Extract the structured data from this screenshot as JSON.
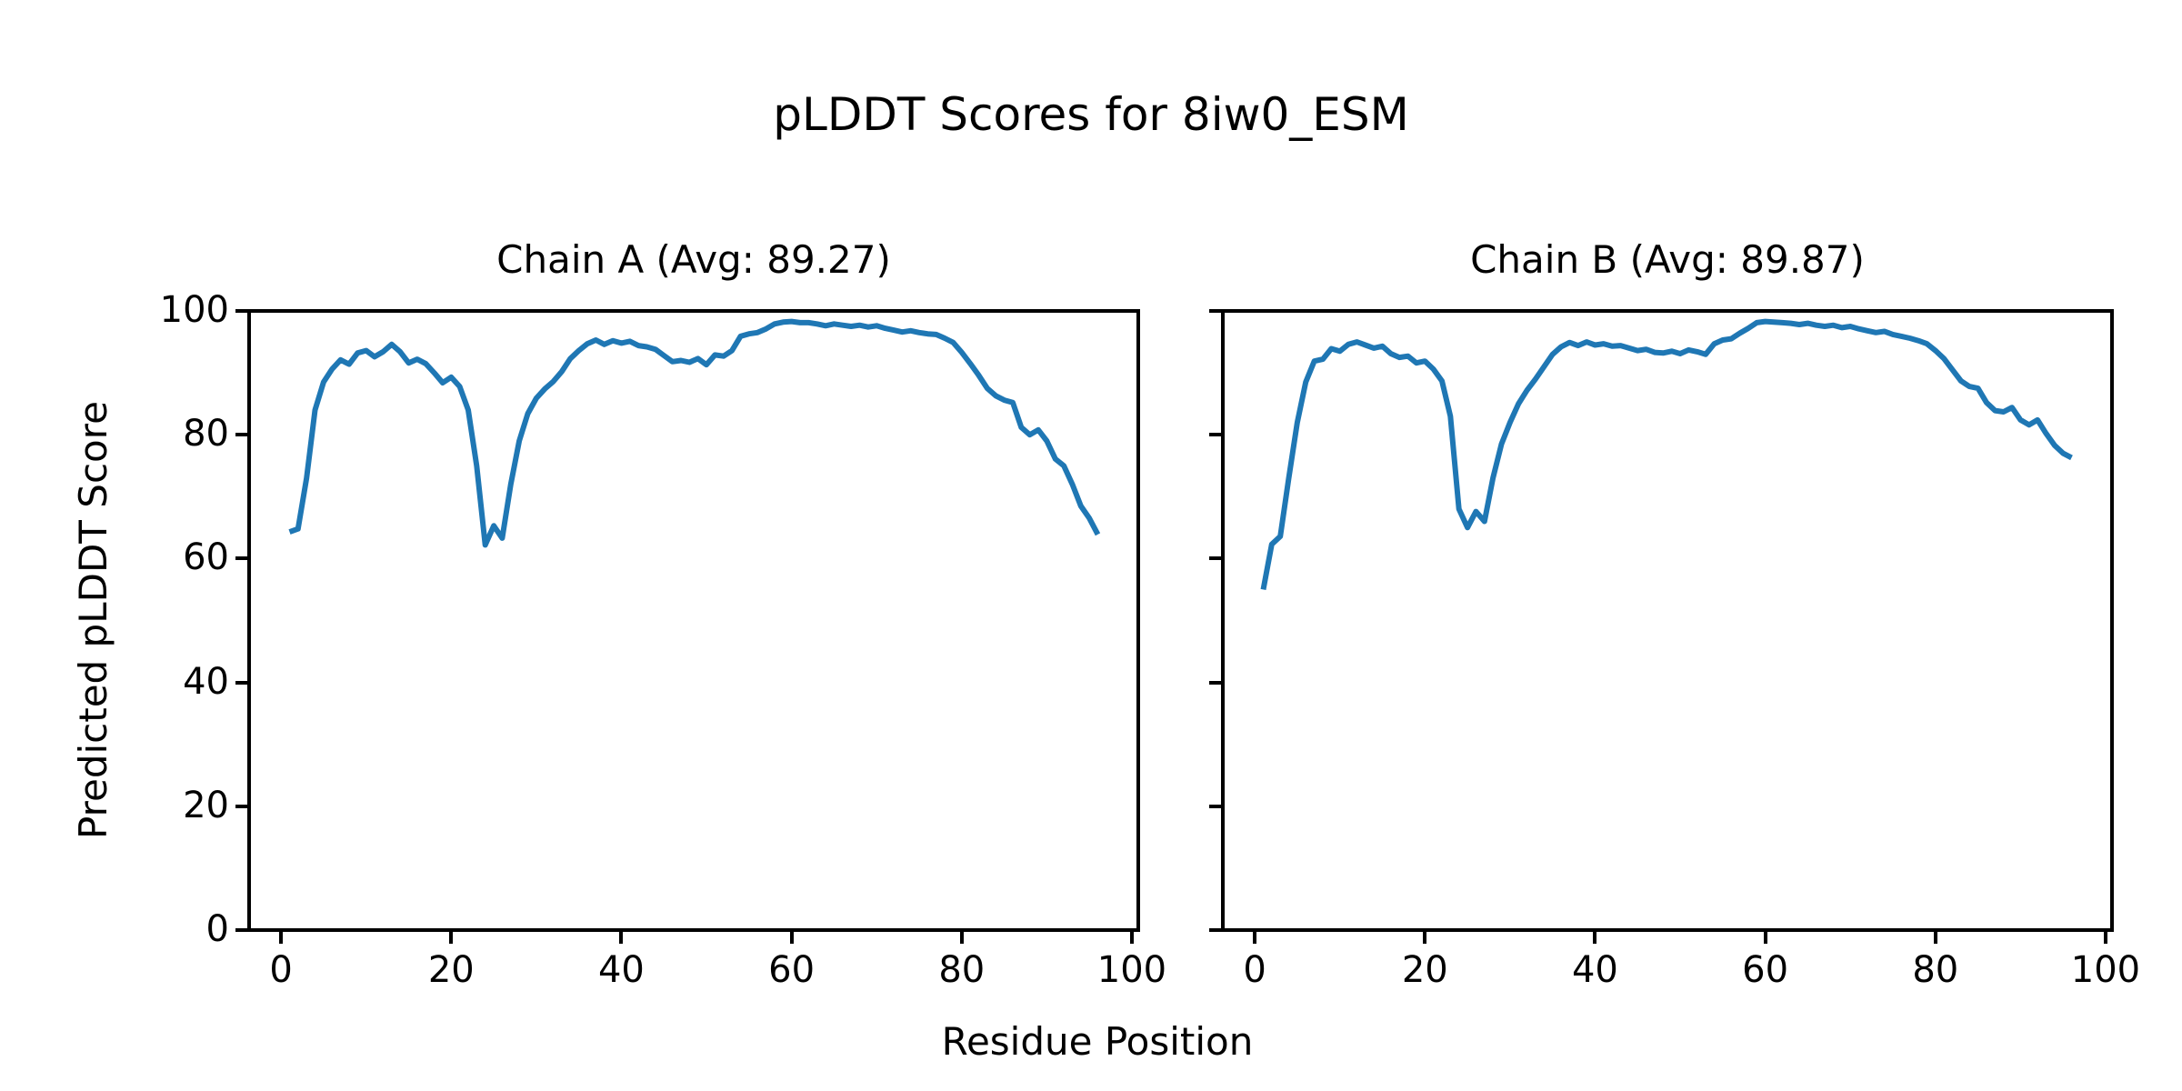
{
  "figure": {
    "title": "pLDDT Scores for 8iw0_ESM",
    "xlabel": "Residue Position",
    "ylabel": "Predicted pLDDT Score",
    "background_color": "#ffffff",
    "text_color": "#000000",
    "spine_color": "#000000"
  },
  "chart_data": [
    {
      "type": "line",
      "title": "Chain A (Avg: 89.27)",
      "series_name": "Chain A pLDDT",
      "avg": 89.27,
      "line_color": "#1f77b4",
      "line_width": 6,
      "grid": false,
      "legend": "none",
      "xlim": [
        -3.75,
        100.75
      ],
      "ylim": [
        0,
        100
      ],
      "xticks": [
        0,
        20,
        40,
        60,
        80,
        100
      ],
      "yticks": [
        0,
        20,
        40,
        60,
        80,
        100
      ],
      "show_ytick_labels": true,
      "x": [
        1,
        2,
        3,
        4,
        5,
        6,
        7,
        8,
        9,
        10,
        11,
        12,
        13,
        14,
        15,
        16,
        17,
        18,
        19,
        20,
        21,
        22,
        23,
        24,
        25,
        26,
        27,
        28,
        29,
        30,
        31,
        32,
        33,
        34,
        35,
        36,
        37,
        38,
        39,
        40,
        41,
        42,
        43,
        44,
        45,
        46,
        47,
        48,
        49,
        50,
        51,
        52,
        53,
        54,
        55,
        56,
        57,
        58,
        59,
        60,
        61,
        62,
        63,
        64,
        65,
        66,
        67,
        68,
        69,
        70,
        71,
        72,
        73,
        74,
        75,
        76,
        77,
        78,
        79,
        80,
        81,
        82,
        83,
        84,
        85,
        86,
        87,
        88,
        89,
        90,
        91,
        92,
        93,
        94,
        95,
        96
      ],
      "values": [
        64.3,
        64.8,
        73,
        84,
        88.5,
        90.6,
        92.1,
        91.4,
        93.2,
        93.6,
        92.6,
        93.4,
        94.6,
        93.4,
        91.6,
        92.2,
        91.5,
        90,
        88.4,
        89.3,
        87.8,
        84,
        75,
        62.2,
        65.3,
        63.3,
        72,
        79,
        83.4,
        85.9,
        87.4,
        88.6,
        90.2,
        92.3,
        93.6,
        94.7,
        95.3,
        94.6,
        95.2,
        94.8,
        95.1,
        94.4,
        94.2,
        93.8,
        92.8,
        91.8,
        92,
        91.7,
        92.3,
        91.3,
        92.9,
        92.7,
        93.6,
        95.9,
        96.3,
        96.5,
        97.1,
        97.9,
        98.2,
        98.3,
        98.1,
        98.1,
        97.9,
        97.6,
        97.9,
        97.7,
        97.5,
        97.7,
        97.4,
        97.6,
        97.2,
        96.9,
        96.6,
        96.8,
        96.5,
        96.3,
        96.2,
        95.6,
        94.9,
        93.3,
        91.5,
        89.6,
        87.5,
        86.3,
        85.6,
        85.2,
        81.2,
        80,
        80.8,
        79,
        76.1,
        75,
        72,
        68.5,
        66.5,
        63.9
      ]
    },
    {
      "type": "line",
      "title": "Chain B (Avg: 89.87)",
      "series_name": "Chain B pLDDT",
      "avg": 89.87,
      "line_color": "#1f77b4",
      "line_width": 6,
      "grid": false,
      "legend": "none",
      "xlim": [
        -3.75,
        100.75
      ],
      "ylim": [
        0,
        100
      ],
      "xticks": [
        0,
        20,
        40,
        60,
        80,
        100
      ],
      "yticks": [
        0,
        20,
        40,
        60,
        80,
        100
      ],
      "show_ytick_labels": false,
      "x": [
        1,
        2,
        3,
        4,
        5,
        6,
        7,
        8,
        9,
        10,
        11,
        12,
        13,
        14,
        15,
        16,
        17,
        18,
        19,
        20,
        21,
        22,
        23,
        24,
        25,
        26,
        27,
        28,
        29,
        30,
        31,
        32,
        33,
        34,
        35,
        36,
        37,
        38,
        39,
        40,
        41,
        42,
        43,
        44,
        45,
        46,
        47,
        48,
        49,
        50,
        51,
        52,
        53,
        54,
        55,
        56,
        57,
        58,
        59,
        60,
        61,
        62,
        63,
        64,
        65,
        66,
        67,
        68,
        69,
        70,
        71,
        72,
        73,
        74,
        75,
        76,
        77,
        78,
        79,
        80,
        81,
        82,
        83,
        84,
        85,
        86,
        87,
        88,
        89,
        90,
        91,
        92,
        93,
        94,
        95,
        96
      ],
      "values": [
        55,
        62.3,
        63.6,
        73,
        82,
        88.5,
        91.9,
        92.2,
        93.9,
        93.5,
        94.6,
        95,
        94.5,
        94,
        94.3,
        93.1,
        92.5,
        92.7,
        91.6,
        91.9,
        90.6,
        88.7,
        83,
        68,
        65,
        67.6,
        66,
        73,
        78.5,
        82,
        85,
        87.2,
        89,
        91,
        93,
        94.2,
        94.9,
        94.4,
        95,
        94.5,
        94.7,
        94.3,
        94.4,
        94,
        93.6,
        93.8,
        93.3,
        93.2,
        93.5,
        93.1,
        93.7,
        93.4,
        93,
        94.7,
        95.3,
        95.5,
        96.4,
        97.2,
        98.1,
        98.3,
        98.2,
        98.1,
        98,
        97.8,
        98,
        97.7,
        97.5,
        97.7,
        97.3,
        97.5,
        97.1,
        96.8,
        96.5,
        96.7,
        96.2,
        95.9,
        95.6,
        95.2,
        94.7,
        93.6,
        92.3,
        90.5,
        88.7,
        87.8,
        87.5,
        85.2,
        83.9,
        83.7,
        84.4,
        82.4,
        81.6,
        82.4,
        80.2,
        78.3,
        77,
        76.3
      ]
    }
  ]
}
